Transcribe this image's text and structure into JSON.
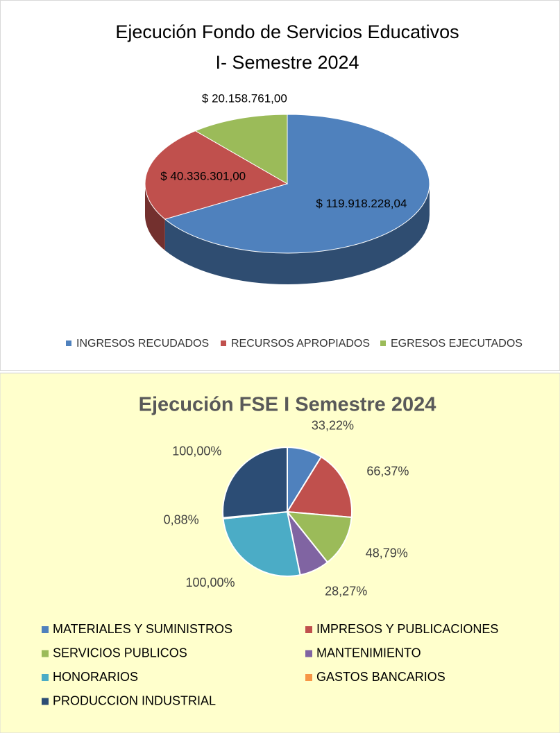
{
  "chart_data": [
    {
      "type": "pie3d",
      "title": [
        "Ejecución Fondo de Servicios Educativos",
        "I- Semestre 2024"
      ],
      "categories": [
        "INGRESOS RECUDADOS",
        "RECURSOS APROPIADOS",
        "EGRESOS EJECUTADOS"
      ],
      "values": [
        119918228.04,
        40336301,
        20158761
      ],
      "value_labels": [
        "$ 119.918.228,04",
        "$ 40.336.301,00",
        "$ 20.158.761,00"
      ],
      "colors": [
        "#4f81bd",
        "#c0504d",
        "#9bbb59"
      ],
      "legend": "bottom"
    },
    {
      "type": "pie",
      "title": "Ejecución  FSE I Semestre 2024",
      "categories": [
        "MATERIALES Y SUMINISTROS",
        "IMPRESOS Y PUBLICACIONES",
        "SERVICIOS PUBLICOS",
        "MANTENIMIENTO",
        "HONORARIOS",
        "GASTOS BANCARIOS",
        "PRODUCCION INDUSTRIAL"
      ],
      "values": [
        33.22,
        66.37,
        48.79,
        28.27,
        100,
        0.88,
        100
      ],
      "value_labels": [
        "33,22%",
        "66,37%",
        "48,79%",
        "28,27%",
        "100,00%",
        "0,88%",
        "100,00%"
      ],
      "colors": [
        "#4f81bd",
        "#c0504d",
        "#9bbb59",
        "#8064a2",
        "#4bacc6",
        "#f79646",
        "#2c4d75"
      ],
      "legend": "bottom"
    }
  ]
}
